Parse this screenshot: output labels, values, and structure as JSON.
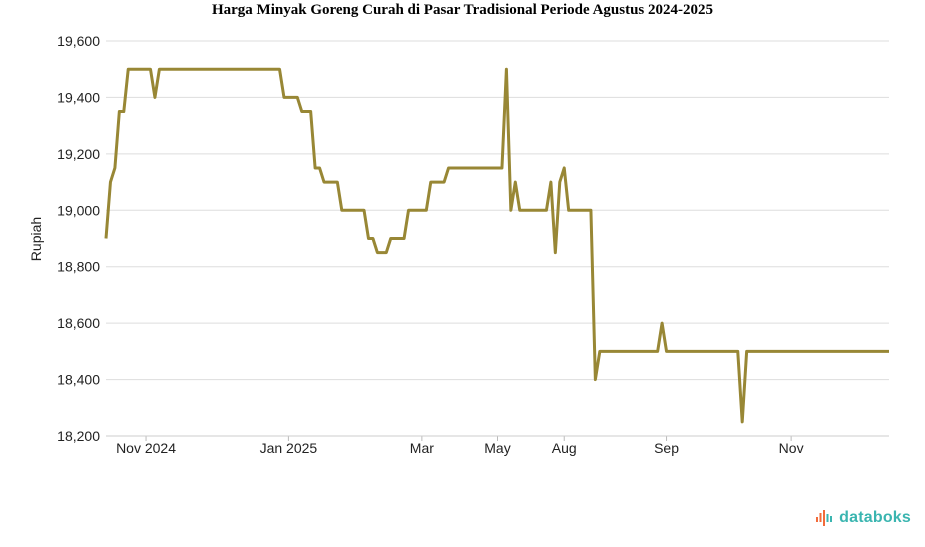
{
  "chart_data": {
    "type": "line",
    "title": "Harga Minyak Goreng Curah di Pasar Tradisional Periode Agustus 2024-2025",
    "ylabel": "Rupiah",
    "xlabel": "",
    "ylim": [
      18200,
      19600
    ],
    "yticks": [
      "19,600",
      "19,400",
      "19,200",
      "19,000",
      "18,800",
      "18,600",
      "18,400",
      "18,200"
    ],
    "ytick_values": [
      19600,
      19400,
      19200,
      19000,
      18800,
      18600,
      18400,
      18200
    ],
    "xticks": [
      {
        "label": "Nov 2024",
        "index": 9
      },
      {
        "label": "Jan 2025",
        "index": 41
      },
      {
        "label": "Mar",
        "index": 71
      },
      {
        "label": "May",
        "index": 88
      },
      {
        "label": "Aug",
        "index": 103
      },
      {
        "label": "Sep",
        "index": 126
      },
      {
        "label": "Nov",
        "index": 154
      }
    ],
    "grid": true,
    "series": [
      {
        "color": "#988735",
        "values": [
          18900,
          19100,
          19150,
          19350,
          19350,
          19500,
          19500,
          19500,
          19500,
          19500,
          19500,
          19400,
          19500,
          19500,
          19500,
          19500,
          19500,
          19500,
          19500,
          19500,
          19500,
          19500,
          19500,
          19500,
          19500,
          19500,
          19500,
          19500,
          19500,
          19500,
          19500,
          19500,
          19500,
          19500,
          19500,
          19500,
          19500,
          19500,
          19500,
          19500,
          19400,
          19400,
          19400,
          19400,
          19350,
          19350,
          19350,
          19150,
          19150,
          19100,
          19100,
          19100,
          19100,
          19000,
          19000,
          19000,
          19000,
          19000,
          19000,
          18900,
          18900,
          18850,
          18850,
          18850,
          18900,
          18900,
          18900,
          18900,
          19000,
          19000,
          19000,
          19000,
          19000,
          19100,
          19100,
          19100,
          19100,
          19150,
          19150,
          19150,
          19150,
          19150,
          19150,
          19150,
          19150,
          19150,
          19150,
          19150,
          19150,
          19150,
          19500,
          19000,
          19100,
          19000,
          19000,
          19000,
          19000,
          19000,
          19000,
          19000,
          19100,
          18850,
          19100,
          19150,
          19000,
          19000,
          19000,
          19000,
          19000,
          19000,
          18400,
          18500,
          18500,
          18500,
          18500,
          18500,
          18500,
          18500,
          18500,
          18500,
          18500,
          18500,
          18500,
          18500,
          18500,
          18600,
          18500,
          18500,
          18500,
          18500,
          18500,
          18500,
          18500,
          18500,
          18500,
          18500,
          18500,
          18500,
          18500,
          18500,
          18500,
          18500,
          18500,
          18250,
          18500,
          18500,
          18500,
          18500,
          18500,
          18500,
          18500,
          18500,
          18500,
          18500,
          18500,
          18500,
          18500,
          18500,
          18500,
          18500,
          18500,
          18500,
          18500,
          18500,
          18500,
          18500,
          18500,
          18500,
          18500,
          18500,
          18500,
          18500,
          18500,
          18500,
          18500,
          18500,
          18500
        ]
      }
    ]
  },
  "brand": {
    "name": "databoks",
    "icon": "databoks-bars-icon",
    "color": "#3ab5b0"
  }
}
